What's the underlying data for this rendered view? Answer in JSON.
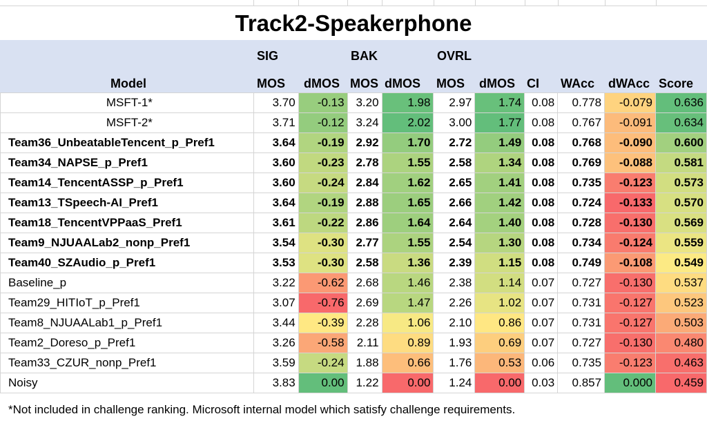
{
  "title": "Track2-Speakerphone",
  "header": {
    "group_sig": "SIG",
    "group_bak": "BAK",
    "group_ovrl": "OVRL",
    "model": "Model",
    "sig_mos": "MOS",
    "sig_dmos": "dMOS",
    "bak_mos": "MOS",
    "bak_dmos": "dMOS",
    "ovrl_mos": "MOS",
    "ovrl_dmos": "dMOS",
    "ci": "CI",
    "wacc": "WAcc",
    "dwacc": "dWAcc",
    "score": "Score"
  },
  "rows": [
    {
      "model": "MSFT-1*",
      "sig_mos": "3.70",
      "sig_dmos": "-0.13",
      "bak_mos": "3.20",
      "bak_dmos": "1.98",
      "ovrl_mos": "2.97",
      "ovrl_dmos": "1.74",
      "ci": "0.08",
      "wacc": "0.778",
      "dwacc": "-0.079",
      "score": "0.636"
    },
    {
      "model": "MSFT-2*",
      "sig_mos": "3.71",
      "sig_dmos": "-0.12",
      "bak_mos": "3.24",
      "bak_dmos": "2.02",
      "ovrl_mos": "3.00",
      "ovrl_dmos": "1.77",
      "ci": "0.08",
      "wacc": "0.767",
      "dwacc": "-0.091",
      "score": "0.634"
    },
    {
      "model": "Team36_UnbeatableTencent_p_Pref1",
      "sig_mos": "3.64",
      "sig_dmos": "-0.19",
      "bak_mos": "2.92",
      "bak_dmos": "1.70",
      "ovrl_mos": "2.72",
      "ovrl_dmos": "1.49",
      "ci": "0.08",
      "wacc": "0.768",
      "dwacc": "-0.090",
      "score": "0.600"
    },
    {
      "model": "Team34_NAPSE_p_Pref1",
      "sig_mos": "3.60",
      "sig_dmos": "-0.23",
      "bak_mos": "2.78",
      "bak_dmos": "1.55",
      "ovrl_mos": "2.58",
      "ovrl_dmos": "1.34",
      "ci": "0.08",
      "wacc": "0.769",
      "dwacc": "-0.088",
      "score": "0.581"
    },
    {
      "model": "Team14_TencentASSP_p_Pref1",
      "sig_mos": "3.60",
      "sig_dmos": "-0.24",
      "bak_mos": "2.84",
      "bak_dmos": "1.62",
      "ovrl_mos": "2.65",
      "ovrl_dmos": "1.41",
      "ci": "0.08",
      "wacc": "0.735",
      "dwacc": "-0.123",
      "score": "0.573"
    },
    {
      "model": "Team13_TSpeech-AI_Pref1",
      "sig_mos": "3.64",
      "sig_dmos": "-0.19",
      "bak_mos": "2.88",
      "bak_dmos": "1.65",
      "ovrl_mos": "2.66",
      "ovrl_dmos": "1.42",
      "ci": "0.08",
      "wacc": "0.724",
      "dwacc": "-0.133",
      "score": "0.570"
    },
    {
      "model": "Team18_TencentVPPaaS_Pref1",
      "sig_mos": "3.61",
      "sig_dmos": "-0.22",
      "bak_mos": "2.86",
      "bak_dmos": "1.64",
      "ovrl_mos": "2.64",
      "ovrl_dmos": "1.40",
      "ci": "0.08",
      "wacc": "0.728",
      "dwacc": "-0.130",
      "score": "0.569"
    },
    {
      "model": "Team9_NJUAALab2_nonp_Pref1",
      "sig_mos": "3.54",
      "sig_dmos": "-0.30",
      "bak_mos": "2.77",
      "bak_dmos": "1.55",
      "ovrl_mos": "2.54",
      "ovrl_dmos": "1.30",
      "ci": "0.08",
      "wacc": "0.734",
      "dwacc": "-0.124",
      "score": "0.559"
    },
    {
      "model": "Team40_SZAudio_p_Pref1",
      "sig_mos": "3.53",
      "sig_dmos": "-0.30",
      "bak_mos": "2.58",
      "bak_dmos": "1.36",
      "ovrl_mos": "2.39",
      "ovrl_dmos": "1.15",
      "ci": "0.08",
      "wacc": "0.749",
      "dwacc": "-0.108",
      "score": "0.549"
    },
    {
      "model": "Baseline_p",
      "sig_mos": "3.22",
      "sig_dmos": "-0.62",
      "bak_mos": "2.68",
      "bak_dmos": "1.46",
      "ovrl_mos": "2.38",
      "ovrl_dmos": "1.14",
      "ci": "0.07",
      "wacc": "0.727",
      "dwacc": "-0.130",
      "score": "0.537"
    },
    {
      "model": "Team29_HITIoT_p_Pref1",
      "sig_mos": "3.07",
      "sig_dmos": "-0.76",
      "bak_mos": "2.69",
      "bak_dmos": "1.47",
      "ovrl_mos": "2.26",
      "ovrl_dmos": "1.02",
      "ci": "0.07",
      "wacc": "0.731",
      "dwacc": "-0.127",
      "score": "0.523"
    },
    {
      "model": "Team8_NJUAALab1_p_Pref1",
      "sig_mos": "3.44",
      "sig_dmos": "-0.39",
      "bak_mos": "2.28",
      "bak_dmos": "1.06",
      "ovrl_mos": "2.10",
      "ovrl_dmos": "0.86",
      "ci": "0.07",
      "wacc": "0.731",
      "dwacc": "-0.127",
      "score": "0.503"
    },
    {
      "model": "Team2_Doreso_p_Pref1",
      "sig_mos": "3.26",
      "sig_dmos": "-0.58",
      "bak_mos": "2.11",
      "bak_dmos": "0.89",
      "ovrl_mos": "1.93",
      "ovrl_dmos": "0.69",
      "ci": "0.07",
      "wacc": "0.727",
      "dwacc": "-0.130",
      "score": "0.480"
    },
    {
      "model": "Team33_CZUR_nonp_Pref1",
      "sig_mos": "3.59",
      "sig_dmos": "-0.24",
      "bak_mos": "1.88",
      "bak_dmos": "0.66",
      "ovrl_mos": "1.76",
      "ovrl_dmos": "0.53",
      "ci": "0.06",
      "wacc": "0.735",
      "dwacc": "-0.123",
      "score": "0.463"
    },
    {
      "model": "Noisy",
      "sig_mos": "3.83",
      "sig_dmos": "0.00",
      "bak_mos": "1.22",
      "bak_dmos": "0.00",
      "ovrl_mos": "1.24",
      "ovrl_dmos": "0.00",
      "ci": "0.03",
      "wacc": "0.857",
      "dwacc": "0.000",
      "score": "0.459"
    }
  ],
  "footnote": "*Not included in challenge ranking. Microsoft internal model which satisfy challenge requirements."
}
